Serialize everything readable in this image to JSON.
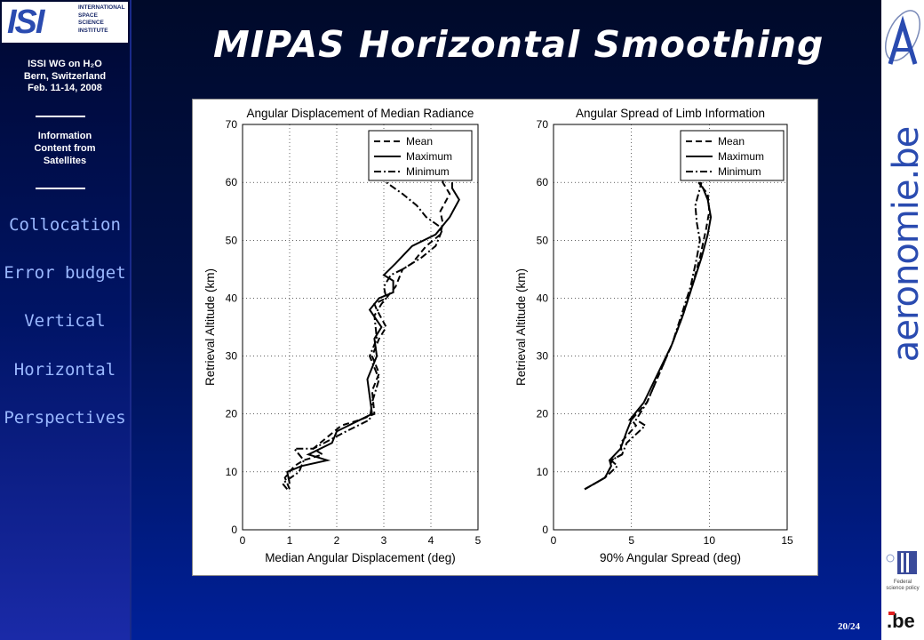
{
  "sidebar": {
    "logo_text": "ISI",
    "logo_org": "INTERNATIONAL\nSPACE\nSCIENCE\nINSTITUTE",
    "meeting_line1": "ISSI WG on H₂O",
    "meeting_line2": "Bern, Switzerland",
    "meeting_line3": "Feb. 11-14, 2008",
    "topic_line1": "Information",
    "topic_line2": "Content from",
    "topic_line3": "Satellites",
    "nav": [
      "Collocation",
      "Error budget",
      "Vertical",
      "Horizontal",
      "Perspectives"
    ]
  },
  "title": "MIPAS Horizontal Smoothing",
  "right_brand": {
    "text": "aeronomie.be",
    "top_symbol": "A",
    "federal_text": "Federal\nscience policy",
    "be_text": ".be"
  },
  "page_number": "20/24",
  "colors": {
    "accent": "#2a4bb0",
    "nav_text": "#9ab8ff"
  },
  "chart_data": [
    {
      "type": "line",
      "title": "Angular Displacement of Median Radiance",
      "xlabel": "Median Angular Displacement (deg)",
      "ylabel": "Retrieval Altitude (km)",
      "xlim": [
        0,
        5
      ],
      "ylim": [
        0,
        70
      ],
      "xticks": [
        "0",
        "1",
        "2",
        "3",
        "4",
        "5"
      ],
      "yticks": [
        "0",
        "10",
        "20",
        "30",
        "40",
        "50",
        "60",
        "70"
      ],
      "grid": true,
      "legend_position": "top-right",
      "series": [
        {
          "name": "Mean",
          "style": "dashed",
          "x": [
            1.0,
            0.9,
            1.1,
            1.3,
            1.7,
            1.5,
            2.1,
            2.5,
            2.8,
            2.75,
            2.9,
            2.75,
            2.9,
            3.05,
            2.85,
            2.8,
            3.05,
            3.25,
            3.3,
            3.4,
            3.6,
            3.9,
            4.2,
            4.25,
            4.2,
            4.4,
            4.25,
            4.3
          ],
          "y": [
            7,
            9,
            11,
            12,
            13,
            14,
            18,
            19,
            20,
            24,
            27,
            30,
            33,
            35,
            38,
            39,
            40,
            42,
            43,
            45,
            46,
            49,
            51,
            53,
            55,
            58,
            60,
            62
          ]
        },
        {
          "name": "Maximum",
          "style": "solid",
          "x": [
            1.0,
            0.95,
            1.25,
            1.8,
            1.4,
            1.9,
            2.0,
            2.5,
            2.75,
            2.65,
            2.85,
            2.8,
            2.95,
            2.7,
            2.9,
            3.2,
            3.2,
            3.0,
            3.25,
            3.6,
            4.1,
            4.4,
            4.6,
            4.45,
            4.45
          ],
          "y": [
            8,
            10,
            11,
            12,
            13,
            15,
            17,
            19,
            20,
            26,
            30,
            33,
            35,
            38,
            40,
            41,
            43,
            44,
            46,
            49,
            51,
            54,
            57,
            59,
            60
          ]
        },
        {
          "name": "Minimum",
          "style": "dashdot",
          "x": [
            0.95,
            0.85,
            1.2,
            1.3,
            1.1,
            1.5,
            2.2,
            2.7,
            2.75,
            2.9,
            2.7,
            2.85,
            2.8,
            2.95,
            3.05,
            3.0,
            3.15,
            3.4,
            3.8,
            4.1,
            4.25,
            3.9,
            3.7,
            3.4,
            3.05
          ],
          "y": [
            7,
            8,
            10,
            12,
            14,
            14,
            17,
            19,
            22,
            26,
            30,
            33,
            37,
            39,
            40,
            42,
            44,
            45,
            47,
            49,
            52,
            54,
            56,
            58,
            60
          ]
        }
      ]
    },
    {
      "type": "line",
      "title": "Angular Spread of Limb Information",
      "xlabel": "90% Angular Spread (deg)",
      "ylabel": "Retrieval Altitude (km)",
      "xlim": [
        0,
        15
      ],
      "ylim": [
        0,
        70
      ],
      "xticks": [
        "0",
        "5",
        "10",
        "15"
      ],
      "yticks": [
        "0",
        "10",
        "20",
        "30",
        "40",
        "50",
        "60",
        "70"
      ],
      "grid": true,
      "legend_position": "top-right",
      "series": [
        {
          "name": "Mean",
          "style": "dashed",
          "x": [
            2.0,
            3.3,
            3.7,
            3.7,
            4.4,
            4.3,
            5.3,
            5.0,
            6.0,
            6.8,
            7.6,
            8.3,
            8.9,
            9.4,
            9.8,
            10.0,
            9.9,
            9.6,
            9.4
          ],
          "y": [
            7,
            9,
            11,
            12,
            13,
            15,
            18,
            19,
            22,
            27,
            32,
            37,
            42,
            47,
            52,
            55,
            58,
            59,
            60
          ]
        },
        {
          "name": "Maximum",
          "style": "solid",
          "x": [
            2.0,
            3.3,
            3.7,
            3.6,
            4.3,
            4.7,
            5.0,
            4.9,
            5.8,
            6.7,
            7.6,
            8.3,
            8.9,
            9.5,
            9.9,
            10.1,
            9.9,
            9.6,
            9.3
          ],
          "y": [
            7,
            9,
            11,
            12,
            14,
            17,
            19,
            19,
            22,
            27,
            32,
            37,
            42,
            47,
            51,
            54,
            57,
            59,
            60
          ]
        },
        {
          "name": "Minimum",
          "style": "dashdot",
          "x": [
            2.0,
            3.3,
            4.1,
            3.7,
            4.4,
            4.7,
            5.9,
            5.3,
            6.0,
            6.8,
            7.6,
            8.2,
            8.8,
            9.2,
            9.4,
            9.2,
            9.1,
            9.3,
            9.5
          ],
          "y": [
            7,
            9,
            11,
            12,
            13,
            15,
            18,
            19,
            22,
            27,
            32,
            37,
            42,
            47,
            50,
            53,
            56,
            58,
            60
          ]
        }
      ]
    }
  ]
}
